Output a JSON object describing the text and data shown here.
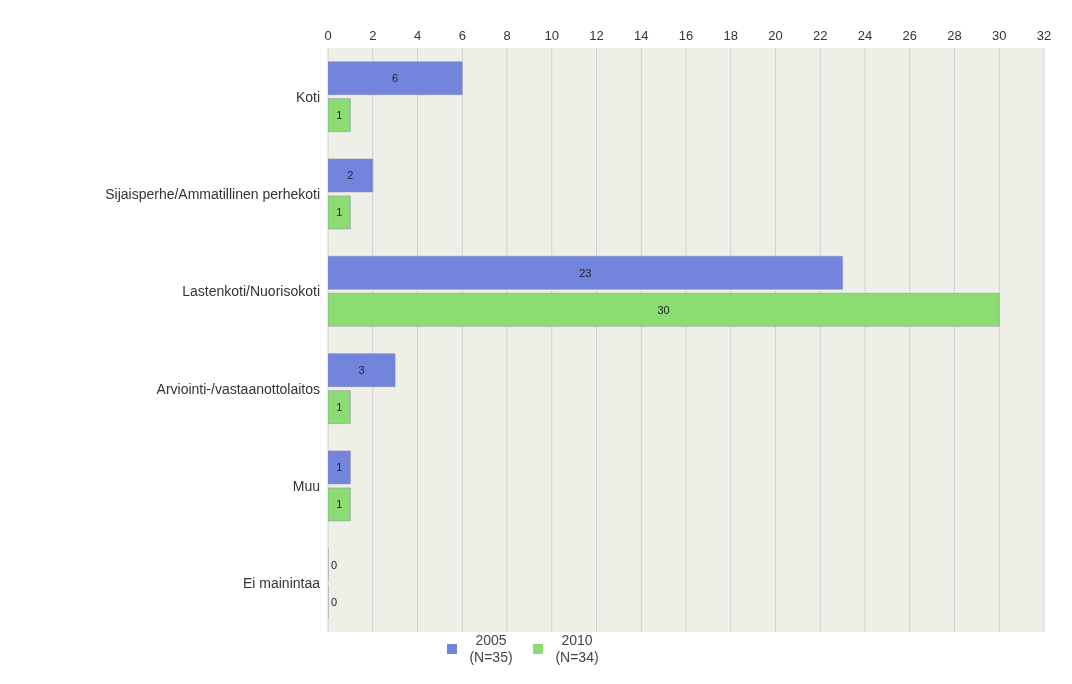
{
  "chart_data": {
    "type": "bar",
    "orientation": "horizontal",
    "categories": [
      "Koti",
      "Sijaisperhe/Ammatillinen perhekoti",
      "Lastenkoti/Nuorisokoti",
      "Arviointi-/vastaanottolaitos",
      "Muu",
      "Ei mainintaa"
    ],
    "series": [
      {
        "name": "2005 (N=35)",
        "color": "#7284dc",
        "values": [
          6,
          2,
          23,
          3,
          1,
          0
        ]
      },
      {
        "name": "2010 (N=34)",
        "color": "#8cdc74",
        "values": [
          1,
          1,
          30,
          1,
          1,
          0
        ]
      }
    ],
    "xlim": [
      0,
      32
    ],
    "xticks": [
      0,
      2,
      4,
      6,
      8,
      10,
      12,
      14,
      16,
      18,
      20,
      22,
      24,
      26,
      28,
      30,
      32
    ],
    "grid": "x",
    "legend": "bottom",
    "data_labels": true
  }
}
